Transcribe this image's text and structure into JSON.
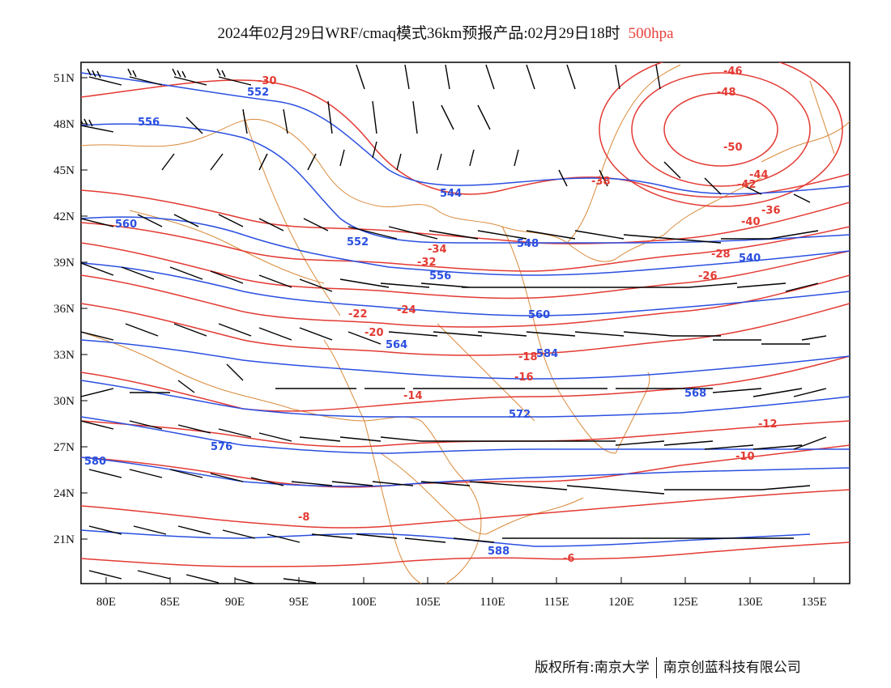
{
  "header": {
    "title": "2024年02月29日WRF/cmaq模式36km预报产品:02月29日18时",
    "level": "500hpa"
  },
  "axes": {
    "lat_ticks": [
      "51N",
      "48N",
      "45N",
      "42N",
      "39N",
      "36N",
      "33N",
      "30N",
      "27N",
      "24N",
      "21N"
    ],
    "lon_ticks": [
      "80E",
      "85E",
      "90E",
      "95E",
      "100E",
      "105E",
      "110E",
      "115E",
      "120E",
      "125E",
      "130E",
      "135E"
    ]
  },
  "colors": {
    "temperature": "#e33a33",
    "height": "#2a4fe0",
    "border": "#d98a3a",
    "wind": "#000000"
  },
  "temperature_labels": [
    "-30",
    "-46",
    "-48",
    "-50",
    "-42",
    "-44",
    "-36",
    "-38",
    "-40",
    "-34",
    "-32",
    "-28",
    "-26",
    "-24",
    "-22",
    "-20",
    "-18",
    "-16",
    "-14",
    "-12",
    "-10",
    "-8",
    "-6"
  ],
  "height_labels": [
    "552",
    "556",
    "544",
    "560",
    "548",
    "540",
    "552",
    "556",
    "560",
    "564",
    "568",
    "572",
    "576",
    "580",
    "584",
    "588"
  ],
  "footer": {
    "copyright": "版权所有:南京大学",
    "company": "南京创蓝科技有限公司"
  }
}
